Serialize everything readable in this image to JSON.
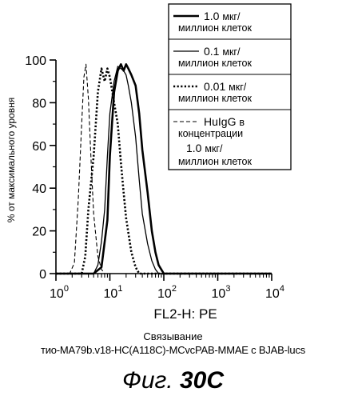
{
  "chart_data": {
    "type": "line",
    "title": "",
    "xlabel": "FL2-H: PE",
    "ylabel": "% от максимального уровня",
    "x_scale": "log",
    "xlim": [
      1,
      10000
    ],
    "ylim": [
      0,
      100
    ],
    "x_ticks": [
      {
        "base": "10",
        "exp": "0"
      },
      {
        "base": "10",
        "exp": "1"
      },
      {
        "base": "10",
        "exp": "2"
      },
      {
        "base": "10",
        "exp": "3"
      },
      {
        "base": "10",
        "exp": "4"
      }
    ],
    "y_ticks": [
      "0",
      "20",
      "40",
      "60",
      "80",
      "100"
    ],
    "series": [
      {
        "name": "1.0 мкг/ миллион клеток",
        "label_value": "1.0",
        "label_unit": "мкг/",
        "label_line2": "миллион клеток",
        "style": "thick",
        "x": [
          1,
          5,
          7,
          9,
          10,
          12,
          14,
          16,
          18,
          20,
          22,
          25,
          30,
          35,
          40,
          50,
          60,
          70,
          80,
          100,
          10000
        ],
        "y": [
          0,
          0,
          3,
          25,
          55,
          85,
          95,
          98,
          95,
          98,
          96,
          93,
          88,
          75,
          58,
          38,
          20,
          10,
          4,
          0,
          0
        ]
      },
      {
        "name": "0.1 мкг/ миллион клеток",
        "label_value": "0.1",
        "label_unit": "мкг/",
        "label_line2": "миллион клеток",
        "style": "thin",
        "x": [
          1,
          5,
          6,
          7,
          8,
          9,
          10,
          12,
          14,
          16,
          18,
          20,
          22,
          25,
          30,
          35,
          40,
          50,
          60,
          70,
          80,
          10000
        ],
        "y": [
          0,
          0,
          4,
          15,
          30,
          55,
          75,
          90,
          97,
          96,
          95,
          93,
          88,
          80,
          64,
          44,
          28,
          14,
          6,
          2,
          0,
          0
        ]
      },
      {
        "name": "0.01 мкг/ миллион клеток",
        "label_value": "0.01",
        "label_unit": "мкг/",
        "label_line2": "миллион клеток",
        "style": "dotted",
        "x": [
          1,
          3,
          3.5,
          4,
          5,
          6,
          7,
          8,
          9,
          10,
          12,
          14,
          16,
          18,
          20,
          25,
          30,
          35,
          40,
          10000
        ],
        "y": [
          0,
          0,
          8,
          30,
          55,
          85,
          96,
          90,
          96,
          92,
          80,
          70,
          52,
          38,
          26,
          10,
          3,
          0,
          0,
          0
        ]
      },
      {
        "name": "HuIgG в концентрации 1.0 мкг/ миллион клеток",
        "label_value": "HuIgG",
        "label_unit": "в",
        "label_line2": "концентрации",
        "label_line3_value": "1.0",
        "label_line3_unit": "мкг/",
        "label_line4": "миллион клеток",
        "style": "dashed",
        "x": [
          1,
          1.8,
          2.2,
          2.6,
          3.0,
          3.3,
          3.6,
          4.0,
          4.5,
          5.0,
          6.0,
          7.0,
          8.0,
          10000
        ],
        "y": [
          0,
          0,
          5,
          35,
          70,
          92,
          98,
          82,
          52,
          28,
          8,
          2,
          0,
          0
        ]
      }
    ],
    "legend_position": "top-right"
  },
  "caption": {
    "line1": "Связывание",
    "line2": "тио-MA79b.v18-HC(A118C)-MCvcPAB-MMAE с BJAB-lucs"
  },
  "figure_label": {
    "prefix": "Фиг.",
    "number": "30C"
  }
}
